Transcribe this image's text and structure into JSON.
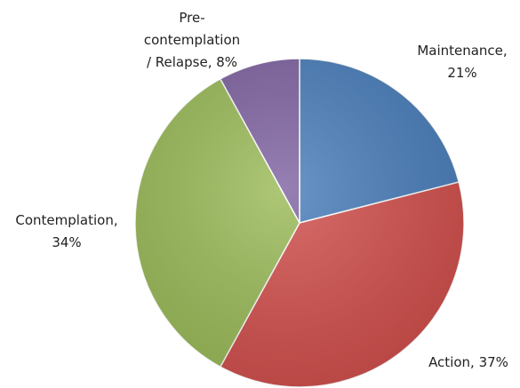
{
  "chart_data": {
    "type": "pie",
    "values": [
      21,
      37,
      34,
      8
    ],
    "value_labels": [
      "Maintenance, 21%",
      "Action, 37%",
      "Contemplation, 34%",
      "Pre-contemplation / Relapse, 8%"
    ],
    "colors": [
      "#4a7ebb",
      "#d2504d",
      "#9bbb59",
      "#8064a2"
    ]
  }
}
